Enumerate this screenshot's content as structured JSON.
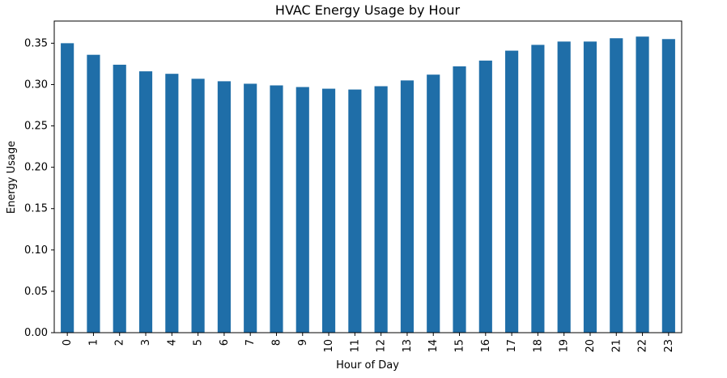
{
  "chart_data": {
    "type": "bar",
    "title": "HVAC Energy Usage by Hour",
    "xlabel": "Hour of Day",
    "ylabel": "Energy Usage",
    "categories": [
      "0",
      "1",
      "2",
      "3",
      "4",
      "5",
      "6",
      "7",
      "8",
      "9",
      "10",
      "11",
      "12",
      "13",
      "14",
      "15",
      "16",
      "17",
      "18",
      "19",
      "20",
      "21",
      "22",
      "23"
    ],
    "values": [
      0.35,
      0.336,
      0.324,
      0.316,
      0.313,
      0.307,
      0.304,
      0.301,
      0.299,
      0.297,
      0.295,
      0.294,
      0.298,
      0.305,
      0.312,
      0.322,
      0.329,
      0.341,
      0.348,
      0.352,
      0.352,
      0.356,
      0.358,
      0.355
    ],
    "ylim": [
      0,
      0.3768
    ],
    "yticks": [
      "0.00",
      "0.05",
      "0.10",
      "0.15",
      "0.20",
      "0.25",
      "0.30",
      "0.35"
    ],
    "bar_color": "#1f6ea8",
    "grid": false,
    "legend": "none"
  }
}
